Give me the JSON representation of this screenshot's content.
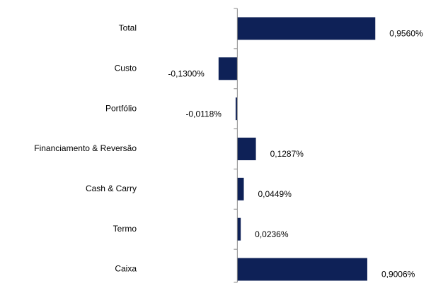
{
  "chart_data": {
    "type": "hbar",
    "categories": [
      "Total",
      "Custo",
      "Portfólio",
      "Financiamento & Reversão",
      "Cash & Carry",
      "Termo",
      "Caixa"
    ],
    "values": [
      0.956,
      -0.13,
      -0.0118,
      0.1287,
      0.0449,
      0.0236,
      0.9006
    ],
    "value_labels": [
      "0,9560%",
      "-0,1300%",
      "-0,0118%",
      "0,1287%",
      "0,0449%",
      "0,0236%",
      "0,9006%"
    ],
    "color": "#0e2157",
    "xlim": [
      -0.6,
      1.2
    ]
  }
}
